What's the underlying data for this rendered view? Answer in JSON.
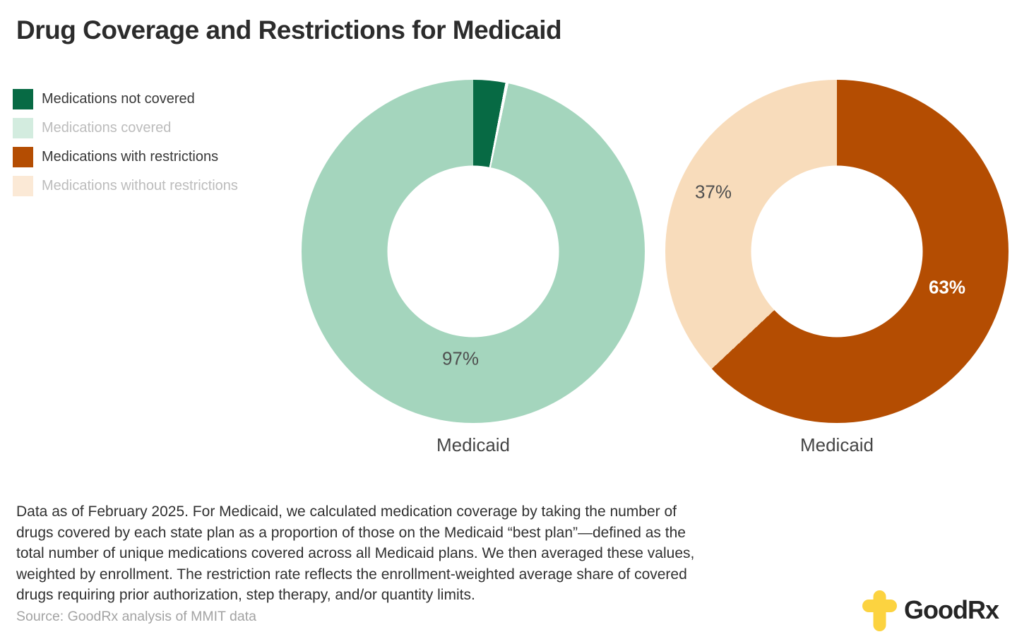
{
  "title": "Drug Coverage and Restrictions for Medicaid",
  "legend": {
    "items": [
      {
        "label": "Medications not covered",
        "swatch_color": "#076a44",
        "muted": false
      },
      {
        "label": "Medications covered",
        "swatch_color": "#d3ecdf",
        "muted": true
      },
      {
        "label": "Medications with restrictions",
        "swatch_color": "#b44d02",
        "muted": false
      },
      {
        "label": "Medications without restrictions",
        "swatch_color": "#fbe9d6",
        "muted": true
      }
    ]
  },
  "chart_data": [
    {
      "type": "donut",
      "caption": "Medicaid",
      "hole_ratio": 0.5,
      "start_angle_deg": 0,
      "separators": true,
      "slices": [
        {
          "name": "Medications not covered",
          "value": 3,
          "color": "#076a44",
          "label": ""
        },
        {
          "name": "Medications covered",
          "value": 97,
          "color": "#a4d5bd",
          "label": "97%"
        }
      ]
    },
    {
      "type": "donut",
      "caption": "Medicaid",
      "hole_ratio": 0.5,
      "start_angle_deg": 0,
      "separators": false,
      "slices": [
        {
          "name": "Medications with restrictions",
          "value": 63,
          "color": "#b44d02",
          "label": "63%"
        },
        {
          "name": "Medications without restrictions",
          "value": 37,
          "color": "#f8dcbb",
          "label": "37%"
        }
      ]
    }
  ],
  "footnote_lines": [
    "Data as of February 2025. For Medicaid, we calculated medication coverage by taking the number of",
    "drugs covered by each state plan as a proportion of those on the Medicaid “best plan”—defined as the",
    "total number of unique medications covered across all Medicaid plans. We then averaged these values,",
    "weighted by enrollment. The restriction rate reflects the enrollment-weighted average share of covered",
    "drugs requiring prior authorization, step therapy, and/or quantity limits."
  ],
  "source": "Source: GoodRx analysis of MMIT data",
  "logo": {
    "good": "Good",
    "rx": "Rx",
    "icon_color": "#fcd340"
  }
}
